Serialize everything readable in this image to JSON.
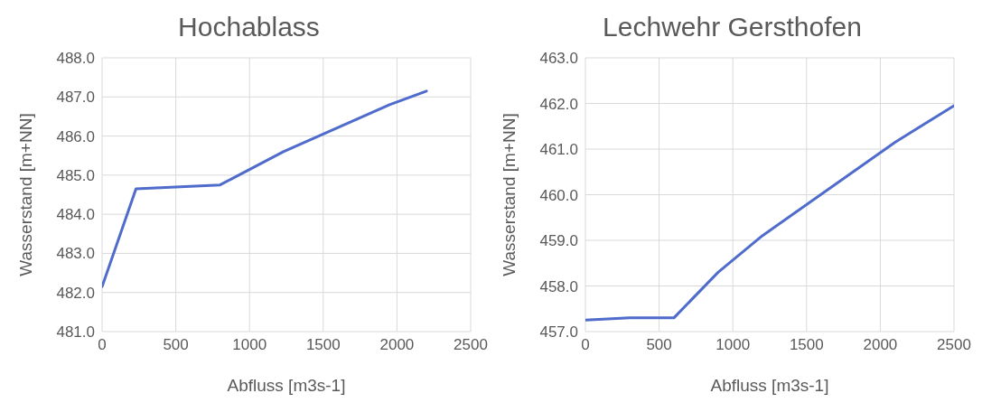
{
  "chart_data": [
    {
      "type": "line",
      "title": "Hochablass",
      "xlabel": "Abfluss [m3s-1]",
      "ylabel": "Wasserstand [m+NN]",
      "x": [
        0,
        230,
        800,
        1230,
        1950,
        2200
      ],
      "series": [
        {
          "color": "#4f6bcb",
          "values": [
            482.15,
            484.65,
            484.75,
            485.6,
            486.8,
            487.15
          ]
        }
      ],
      "xlim": [
        0,
        2500
      ],
      "xticks": [
        0,
        500,
        1000,
        1500,
        2000,
        2500
      ],
      "ylim": [
        481,
        488
      ],
      "yticks": [
        {
          "value": 481,
          "label": "481.0"
        },
        {
          "value": 482,
          "label": "482.0"
        },
        {
          "value": 483,
          "label": "483.0"
        },
        {
          "value": 484,
          "label": "484.0"
        },
        {
          "value": 485,
          "label": "485.0"
        },
        {
          "value": 486,
          "label": "486.0"
        },
        {
          "value": 487,
          "label": "487.0"
        },
        {
          "value": 488,
          "label": "488.0"
        }
      ],
      "grid": true,
      "legend": false,
      "marker": "none",
      "line_style": "solid"
    },
    {
      "type": "line",
      "title": "Lechwehr Gersthofen",
      "xlabel": "Abfluss [m3s-1]",
      "ylabel": "Wasserstand [m+NN]",
      "x": [
        0,
        300,
        600,
        900,
        1200,
        2100,
        2500
      ],
      "series": [
        {
          "color": "#4f6bcb",
          "values": [
            457.25,
            457.3,
            457.3,
            458.3,
            459.1,
            461.15,
            461.95
          ]
        }
      ],
      "xlim": [
        0,
        2500
      ],
      "xticks": [
        0,
        500,
        1000,
        1500,
        2000,
        2500
      ],
      "ylim": [
        457,
        463
      ],
      "yticks": [
        {
          "value": 457,
          "label": "457.0"
        },
        {
          "value": 458,
          "label": "458.0"
        },
        {
          "value": 459,
          "label": "459.0"
        },
        {
          "value": 460,
          "label": "460.0"
        },
        {
          "value": 461,
          "label": "461.0"
        },
        {
          "value": 462,
          "label": "462.0"
        },
        {
          "value": 463,
          "label": "463.0"
        }
      ],
      "grid": true,
      "legend": false,
      "marker": "none",
      "line_style": "solid"
    }
  ]
}
